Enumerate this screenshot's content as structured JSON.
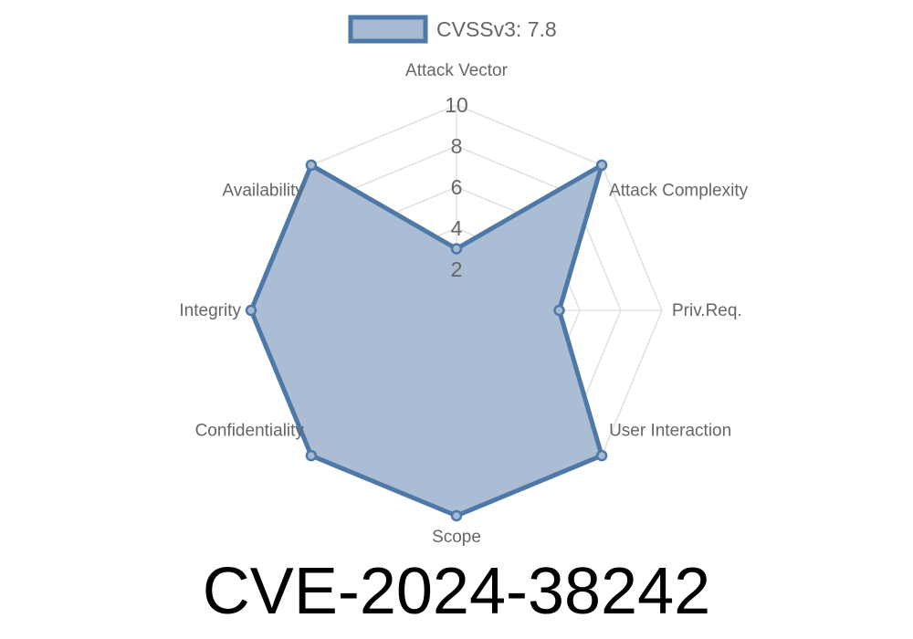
{
  "chart_data": {
    "type": "radar",
    "title": "CVE-2024-38242",
    "categories": [
      "Attack Vector",
      "Attack Complexity",
      "Priv.Req.",
      "User Interaction",
      "Scope",
      "Confidentiality",
      "Integrity",
      "Availability"
    ],
    "series": [
      {
        "name": "CVSSv3: 7.8",
        "values": [
          3,
          10,
          5,
          10,
          10,
          10,
          10,
          10
        ]
      }
    ],
    "r_range": [
      0,
      10
    ],
    "r_ticks": [
      2,
      4,
      6,
      8,
      10
    ],
    "grid": true,
    "legend": "top",
    "colors": {
      "stroke": "#4e79a7",
      "fill": "#a7b9d3",
      "grid": "#e0e0e0",
      "label": "#666666"
    }
  }
}
